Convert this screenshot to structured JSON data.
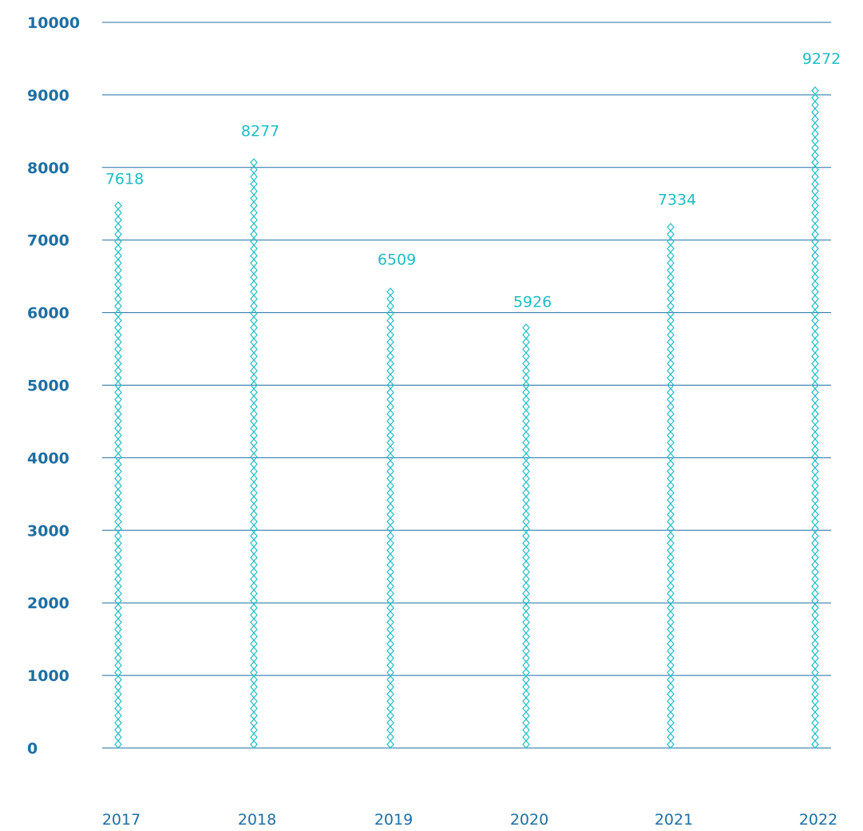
{
  "chart_data": {
    "type": "bar",
    "categories": [
      "2017",
      "2018",
      "2019",
      "2020",
      "2021",
      "2022"
    ],
    "values": [
      7618,
      8277,
      6509,
      5926,
      7334,
      9272
    ],
    "data_labels": [
      "7618",
      "8277",
      "6509",
      "5926",
      "7334",
      "9272"
    ],
    "title": "",
    "xlabel": "",
    "ylabel": "",
    "ylim": [
      0,
      10000
    ],
    "yticks": [
      0,
      1000,
      2000,
      3000,
      4000,
      5000,
      6000,
      7000,
      8000,
      9000,
      10000
    ],
    "ytick_labels": [
      "0",
      "1000",
      "2000",
      "3000",
      "4000",
      "5000",
      "6000",
      "7000",
      "8000",
      "9000",
      "10000"
    ],
    "grid": true,
    "legend": "none",
    "bar_style": "diamond-chain",
    "colors": {
      "grid": "#1e6fa3",
      "axis_text": "#1e6fa3",
      "bar": "#1fbcc4",
      "data_label": "#1fbcc4"
    }
  }
}
